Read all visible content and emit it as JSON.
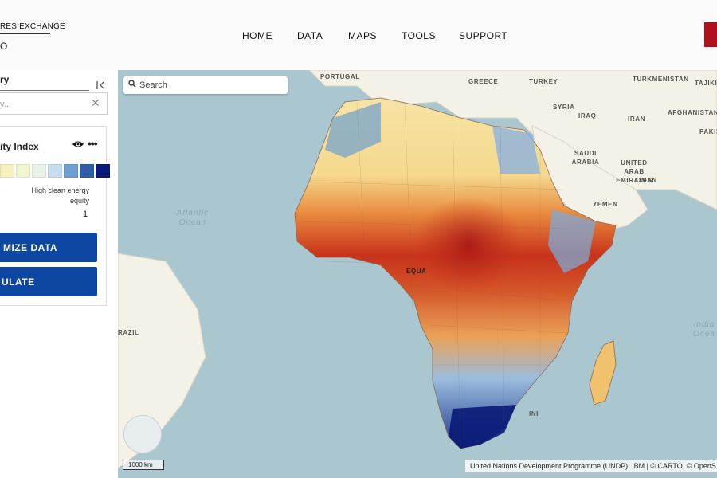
{
  "header": {
    "brand_line1": "RES EXCHANGE",
    "brand_line2": "O",
    "nav": [
      "HOME",
      "DATA",
      "MAPS",
      "TOOLS",
      "SUPPORT"
    ]
  },
  "search": {
    "placeholder": "Search"
  },
  "panel": {
    "category_label": "ry",
    "filter_placeholder": "y...",
    "layer_title": "ity Index",
    "legend_colors": [
      "#f7f0bf",
      "#f2f6cf",
      "#e8f2e6",
      "#c6dcef",
      "#6e9fd0",
      "#2c5fa8",
      "#0a1a78"
    ],
    "legend_high_label": "High clean energy equity",
    "legend_high_value": "1",
    "buttons": [
      "MIZE DATA",
      "ULATE"
    ]
  },
  "map": {
    "labels": [
      "PORTUGAL",
      "GREECE",
      "TURKEY",
      "TURKMENISTAN",
      "TAJIKIS",
      "SYRIA",
      "IRAQ",
      "IRAN",
      "AFGHANISTAN",
      "PAKIS",
      "SAUDI ARABIA",
      "UNITED ARAB EMIRATES",
      "OMAN",
      "YEMEN",
      "EQUA",
      "RAZIL",
      "INI"
    ],
    "oceans": [
      "Atlantic Ocean",
      "India Ocea"
    ],
    "scale": "1000 km",
    "attribution": "United Nations Development Programme (UNDP), IBM | © CARTO, © OpenS"
  }
}
